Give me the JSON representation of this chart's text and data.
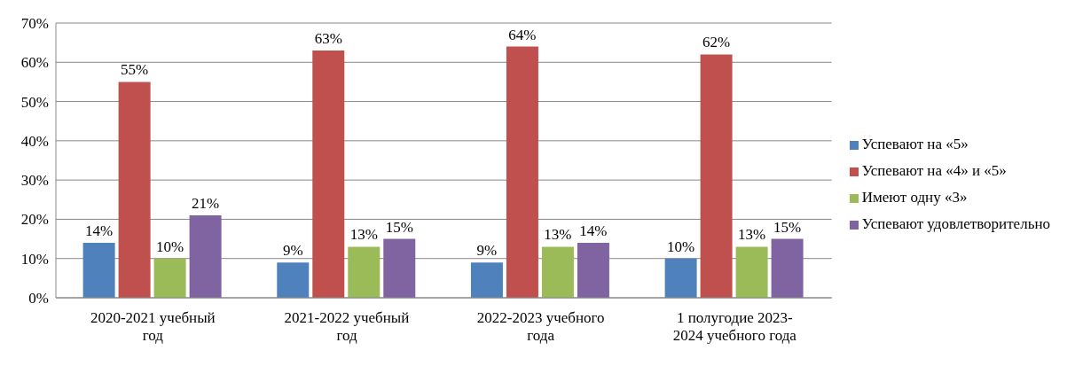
{
  "chart_data": {
    "type": "bar",
    "categories": [
      "2020-2021 учебный год",
      "2021-2022 учебный год",
      "2022-2023 учебного года",
      "1 полугодие 2023-2024 учебного года"
    ],
    "series": [
      {
        "name": "Успевают на «5»",
        "color": "#4f81bd",
        "values": [
          14,
          9,
          9,
          10
        ],
        "value_labels": [
          "14%",
          "9%",
          "9%",
          "10%"
        ]
      },
      {
        "name": "Успевают на «4» и «5»",
        "color": "#c0504d",
        "values": [
          55,
          63,
          64,
          62
        ],
        "value_labels": [
          "55%",
          "63%",
          "64%",
          "62%"
        ]
      },
      {
        "name": "Имеют одну «3»",
        "color": "#9bbb59",
        "values": [
          10,
          13,
          13,
          13
        ],
        "value_labels": [
          "10%",
          "13%",
          "13%",
          "13%"
        ]
      },
      {
        "name": "Успевают удовлетворительно",
        "color": "#8064a2",
        "values": [
          21,
          15,
          14,
          15
        ],
        "value_labels": [
          "21%",
          "15%",
          "14%",
          "15%"
        ]
      }
    ],
    "ylim": [
      0,
      70
    ],
    "yticks": [
      {
        "value": 0,
        "label": "0%"
      },
      {
        "value": 10,
        "label": "10%"
      },
      {
        "value": 20,
        "label": "20%"
      },
      {
        "value": 30,
        "label": "30%"
      },
      {
        "value": 40,
        "label": "40%"
      },
      {
        "value": 50,
        "label": "50%"
      },
      {
        "value": 60,
        "label": "60%"
      },
      {
        "value": 70,
        "label": "70%"
      }
    ],
    "grid": "y",
    "legend": "right"
  }
}
